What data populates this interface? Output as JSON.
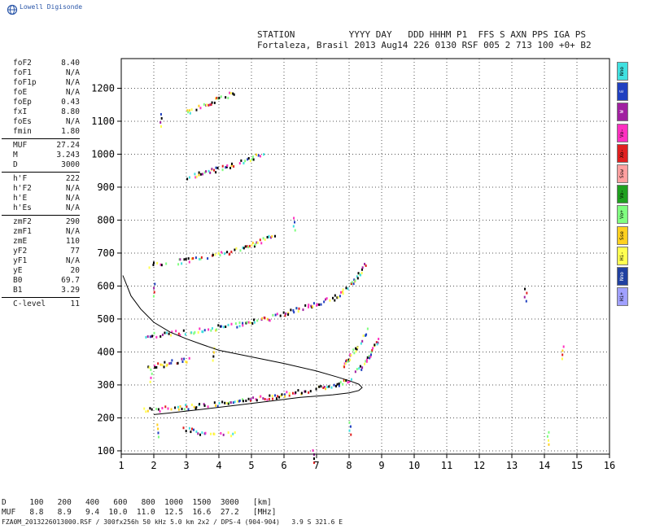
{
  "logo": {
    "text": "Lowell Digisonde"
  },
  "header": {
    "line1": "STATION          YYYY DAY   DDD HHHM P1  FFS S AXN PPS IGA PS",
    "line2": "Fortaleza, Brasil 2013 Aug14 226 0130 RSF 005 2 713 100 +0+ B2"
  },
  "params": [
    {
      "label": "foF2",
      "value": "8.40"
    },
    {
      "label": "foF1",
      "value": "N/A"
    },
    {
      "label": "foF1p",
      "value": "N/A"
    },
    {
      "label": "foE",
      "value": "N/A"
    },
    {
      "label": "foEp",
      "value": "0.43"
    },
    {
      "label": "fxI",
      "value": "8.80"
    },
    {
      "label": "foEs",
      "value": "N/A"
    },
    {
      "label": "fmin",
      "value": "1.80"
    },
    {
      "sep": true
    },
    {
      "label": "MUF",
      "value": "27.24"
    },
    {
      "label": "M",
      "value": "3.243"
    },
    {
      "label": "D",
      "value": "3000"
    },
    {
      "sep": true
    },
    {
      "label": "h'F",
      "value": "222"
    },
    {
      "label": "h'F2",
      "value": "N/A"
    },
    {
      "label": "h'E",
      "value": "N/A"
    },
    {
      "label": "h'Es",
      "value": "N/A"
    },
    {
      "sep": true
    },
    {
      "label": "zmF2",
      "value": "290"
    },
    {
      "label": "zmF1",
      "value": "N/A"
    },
    {
      "label": "zmE",
      "value": "110"
    },
    {
      "label": "yF2",
      "value": "77"
    },
    {
      "label": "yF1",
      "value": "N/A"
    },
    {
      "label": "yE",
      "value": "20"
    },
    {
      "label": "B0",
      "value": "69.7"
    },
    {
      "label": "B1",
      "value": "3.29"
    },
    {
      "sep": true
    },
    {
      "label": "C-level",
      "value": "11"
    }
  ],
  "legend": [
    {
      "label": "Nno",
      "color": "#40e0e0"
    },
    {
      "label": "E",
      "color": "#2040c0"
    },
    {
      "label": "W",
      "color": "#a020a0"
    },
    {
      "label": "Vo-",
      "color": "#ff30c0"
    },
    {
      "label": "Xo-",
      "color": "#e02020"
    },
    {
      "label": "Ssw",
      "color": "#ffa0a0"
    },
    {
      "label": "Vo-",
      "color": "#20a020"
    },
    {
      "label": "Vo+",
      "color": "#80ff80"
    },
    {
      "label": "Sse",
      "color": "#ffd020"
    },
    {
      "label": "Hi-",
      "color": "#ffff50"
    },
    {
      "label": "Nno",
      "color": "#2040a0"
    },
    {
      "label": "Hi+",
      "color": "#a0a0ff"
    }
  ],
  "bottom": {
    "line1": "D     100   200   400   600   800  1000  1500  3000   [km]",
    "line2": "MUF   8.8   8.9   9.4  10.0  11.0  12.5  16.6  27.2   [MHz]"
  },
  "footer": "FZA0M_2013226013000.RSF / 300fx256h 50 kHz 5.0 km 2x2 / DPS-4 (904-904)   3.9 S 321.6 E",
  "chart_data": {
    "type": "scatter",
    "xlim": [
      1,
      16
    ],
    "ylim": [
      90,
      1290
    ],
    "x_ticks": [
      1,
      2,
      3,
      4,
      5,
      6,
      7,
      8,
      9,
      10,
      11,
      12,
      13,
      14,
      15,
      16
    ],
    "y_ticks": [
      100,
      200,
      300,
      400,
      500,
      600,
      700,
      800,
      900,
      1000,
      1100,
      1200
    ],
    "grid": true,
    "trace_bands": [
      {
        "points": [
          [
            1.7,
            228
          ],
          [
            2.5,
            232
          ],
          [
            3.5,
            240
          ],
          [
            4.5,
            252
          ],
          [
            5.5,
            265
          ],
          [
            6.5,
            283
          ],
          [
            7.5,
            300
          ],
          [
            8.0,
            320
          ],
          [
            8.3,
            350
          ],
          [
            8.6,
            390
          ],
          [
            8.9,
            440
          ]
        ]
      },
      {
        "points": [
          [
            1.7,
            452
          ],
          [
            2.5,
            458
          ],
          [
            3.5,
            470
          ],
          [
            4.5,
            485
          ],
          [
            5.5,
            505
          ],
          [
            6.5,
            535
          ],
          [
            7.5,
            565
          ],
          [
            8.0,
            600
          ],
          [
            8.3,
            640
          ],
          [
            8.5,
            670
          ]
        ]
      },
      {
        "points": [
          [
            1.8,
            665
          ],
          [
            2.8,
            678
          ],
          [
            3.8,
            695
          ],
          [
            4.8,
            720
          ],
          [
            5.8,
            760
          ]
        ]
      },
      {
        "points": [
          [
            1.8,
            355
          ],
          [
            2.5,
            370
          ],
          [
            3.1,
            380
          ]
        ]
      },
      {
        "points": [
          [
            3.0,
            930
          ],
          [
            3.6,
            948
          ],
          [
            4.2,
            965
          ],
          [
            4.8,
            985
          ],
          [
            5.4,
            1002
          ]
        ]
      },
      {
        "points": [
          [
            3.0,
            1130
          ],
          [
            3.5,
            1150
          ],
          [
            4.0,
            1170
          ],
          [
            4.5,
            1190
          ]
        ]
      },
      {
        "points": [
          [
            2.9,
            170
          ],
          [
            3.3,
            160
          ],
          [
            3.8,
            158
          ],
          [
            4.5,
            155
          ]
        ]
      },
      {
        "points": [
          [
            7.8,
            360
          ],
          [
            8.1,
            400
          ],
          [
            8.4,
            440
          ],
          [
            8.6,
            480
          ]
        ]
      }
    ],
    "scatter_points": [
      {
        "x": 2.2,
        "y": 1100
      },
      {
        "x": 2.0,
        "y": 585
      },
      {
        "x": 2.1,
        "y": 158
      },
      {
        "x": 6.3,
        "y": 785
      },
      {
        "x": 6.9,
        "y": 80
      },
      {
        "x": 8.0,
        "y": 165
      },
      {
        "x": 3.8,
        "y": 390
      },
      {
        "x": 1.9,
        "y": 325
      },
      {
        "x": 14.1,
        "y": 135
      },
      {
        "x": 13.4,
        "y": 570
      },
      {
        "x": 14.55,
        "y": 395
      }
    ],
    "profile_curve": [
      [
        1.05,
        632
      ],
      [
        1.3,
        570
      ],
      [
        1.6,
        530
      ],
      [
        2.0,
        490
      ],
      [
        2.5,
        460
      ],
      [
        3.0,
        440
      ],
      [
        3.5,
        422
      ],
      [
        4.0,
        405
      ],
      [
        5.0,
        385
      ],
      [
        6.0,
        365
      ],
      [
        7.0,
        342
      ],
      [
        7.6,
        325
      ],
      [
        8.0,
        313
      ],
      [
        8.3,
        302
      ],
      [
        8.4,
        292
      ],
      [
        8.3,
        283
      ],
      [
        8.0,
        276
      ],
      [
        7.5,
        270
      ],
      [
        6.5,
        262
      ],
      [
        5.5,
        250
      ],
      [
        4.5,
        238
      ],
      [
        3.5,
        226
      ],
      [
        2.5,
        215
      ],
      [
        2.0,
        210
      ]
    ],
    "dot_colors": [
      "#000000",
      "#000000",
      "#ff30c0",
      "#e02020",
      "#ffd020",
      "#ffff50",
      "#40e0e0",
      "#2040c0",
      "#a020a0",
      "#80ff80"
    ]
  }
}
